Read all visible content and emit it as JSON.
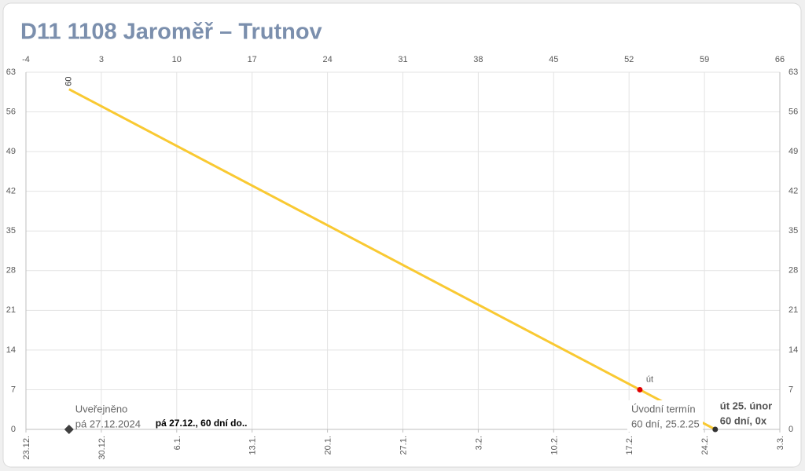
{
  "chart_data": {
    "type": "line",
    "title": "D11 1108 Jaroměř – Trutnov",
    "xlim": [
      -4,
      66
    ],
    "xticks": [
      -4,
      3,
      10,
      17,
      24,
      31,
      38,
      45,
      52,
      59,
      66
    ],
    "x2ticks": [
      {
        "value": -4,
        "label": "23.12."
      },
      {
        "value": 3,
        "label": "30.12."
      },
      {
        "value": 10,
        "label": "6.1."
      },
      {
        "value": 17,
        "label": "13.1."
      },
      {
        "value": 24,
        "label": "20.1."
      },
      {
        "value": 31,
        "label": "27.1."
      },
      {
        "value": 38,
        "label": "3.2."
      },
      {
        "value": 45,
        "label": "10.2."
      },
      {
        "value": 52,
        "label": "17.2."
      },
      {
        "value": 59,
        "label": "24.2."
      },
      {
        "value": 66,
        "label": "3.3."
      }
    ],
    "ylim": [
      0,
      63
    ],
    "yticks": [
      0,
      7,
      14,
      21,
      28,
      35,
      42,
      49,
      56,
      63
    ],
    "y2lim": [
      0,
      63
    ],
    "y2ticks": [
      0,
      7,
      14,
      21,
      28,
      35,
      42,
      49,
      56,
      63
    ],
    "grid": true,
    "series": [
      {
        "color": "#f9c932",
        "x": [
          0,
          60
        ],
        "values": [
          60,
          0
        ]
      }
    ],
    "markers": [
      {
        "x": 0,
        "y": 0,
        "shape": "diamond",
        "color": "#404040",
        "labels": [
          "Uveřejněno",
          "pá 27.12.2024"
        ],
        "note": "pá 27.12., 60 dní do.."
      },
      {
        "x": 53,
        "y": 7,
        "shape": "circle",
        "color": "#e00000",
        "labels": [
          "út"
        ]
      },
      {
        "x": 60,
        "y": 0,
        "shape": "circle",
        "color": "#333333",
        "labels": [
          "út 25. únor",
          "60 dní, 0x"
        ]
      }
    ],
    "annotation": [
      "Úvodní termín",
      "60 dní, 25.2.25"
    ]
  }
}
